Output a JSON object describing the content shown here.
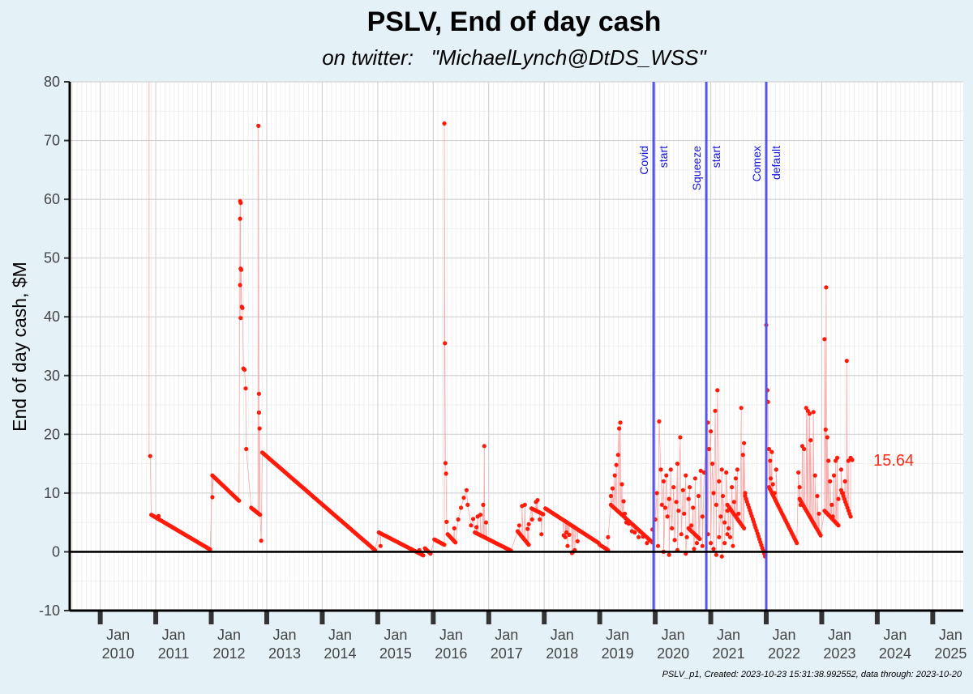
{
  "chart_data": {
    "type": "scatter",
    "title": "PSLV, End of day cash",
    "subtitle": "on twitter:   \"MichaelLynch@DtDS_WSS\"",
    "ylabel": "End of day cash, $M",
    "xlabel": "",
    "caption": "PSLV_p1, Created: 2023-10-23 15:31:38.992552, data through: 2023-10-20",
    "ylim": [
      -10,
      80
    ],
    "yticks": [
      -10,
      0,
      10,
      20,
      30,
      40,
      50,
      60,
      70,
      80
    ],
    "xlim": [
      2009.45,
      2025.55
    ],
    "xticks": [
      {
        "x": 2010.0,
        "line1": "Jan",
        "line2": "2010"
      },
      {
        "x": 2011.0,
        "line1": "Jan",
        "line2": "2011"
      },
      {
        "x": 2012.0,
        "line1": "Jan",
        "line2": "2012"
      },
      {
        "x": 2013.0,
        "line1": "Jan",
        "line2": "2013"
      },
      {
        "x": 2014.0,
        "line1": "Jan",
        "line2": "2014"
      },
      {
        "x": 2015.0,
        "line1": "Jan",
        "line2": "2015"
      },
      {
        "x": 2016.0,
        "line1": "Jan",
        "line2": "2016"
      },
      {
        "x": 2017.0,
        "line1": "Jan",
        "line2": "2017"
      },
      {
        "x": 2018.0,
        "line1": "Jan",
        "line2": "2018"
      },
      {
        "x": 2019.0,
        "line1": "Jan",
        "line2": "2019"
      },
      {
        "x": 2020.0,
        "line1": "Jan",
        "line2": "2020"
      },
      {
        "x": 2021.0,
        "line1": "Jan",
        "line2": "2021"
      },
      {
        "x": 2022.0,
        "line1": "Jan",
        "line2": "2022"
      },
      {
        "x": 2023.0,
        "line1": "Jan",
        "line2": "2023"
      },
      {
        "x": 2024.0,
        "line1": "Jan",
        "line2": "2024"
      },
      {
        "x": 2025.0,
        "line1": "Jan",
        "line2": "2025"
      }
    ],
    "hline": 0,
    "vlines": [
      {
        "x": 2019.97,
        "line1": "Covid",
        "line2": "start"
      },
      {
        "x": 2020.92,
        "line1": "Squeeze",
        "line2": "start"
      },
      {
        "x": 2022.0,
        "line1": "Comex",
        "line2": "default"
      }
    ],
    "end_label": {
      "x": 2023.55,
      "y": 15.64,
      "text": "15.64"
    },
    "grid": true,
    "colors": {
      "points": "#ff1a0a",
      "connector": "#f5a3a3",
      "vlines": "#5555ee",
      "background": "#e4f2f8",
      "panel": "#ffffff"
    },
    "segments": [
      {
        "x0": 2010.92,
        "x1": 2011.98,
        "y0": 6.3,
        "y1": 0.4,
        "n": 60
      },
      {
        "x0": 2012.02,
        "x1": 2012.5,
        "y0": 13.0,
        "y1": 8.7,
        "n": 26
      },
      {
        "x0": 2012.72,
        "x1": 2012.88,
        "y0": 7.5,
        "y1": 6.3,
        "n": 10
      },
      {
        "x0": 2012.92,
        "x1": 2014.95,
        "y0": 16.9,
        "y1": 0.3,
        "n": 110
      },
      {
        "x0": 2015.02,
        "x1": 2015.82,
        "y0": 3.3,
        "y1": -0.6,
        "n": 42
      },
      {
        "x0": 2015.85,
        "x1": 2015.95,
        "y0": 0.6,
        "y1": -0.3,
        "n": 6
      },
      {
        "x0": 2016.02,
        "x1": 2016.2,
        "y0": 2.1,
        "y1": 1.2,
        "n": 10
      },
      {
        "x0": 2016.26,
        "x1": 2016.4,
        "y0": 3.0,
        "y1": 1.6,
        "n": 9
      },
      {
        "x0": 2016.75,
        "x1": 2017.4,
        "y0": 3.3,
        "y1": 0.2,
        "n": 34
      },
      {
        "x0": 2017.52,
        "x1": 2017.72,
        "y0": 3.5,
        "y1": 1.2,
        "n": 11
      },
      {
        "x0": 2017.77,
        "x1": 2017.98,
        "y0": 7.4,
        "y1": 6.4,
        "n": 12
      },
      {
        "x0": 2018.02,
        "x1": 2018.98,
        "y0": 7.4,
        "y1": 1.5,
        "n": 52
      },
      {
        "x0": 2019.0,
        "x1": 2019.15,
        "y0": 1.2,
        "y1": 0.3,
        "n": 8
      },
      {
        "x0": 2019.2,
        "x1": 2019.95,
        "y0": 8.0,
        "y1": 1.6,
        "n": 30
      },
      {
        "x0": 2020.6,
        "x1": 2020.8,
        "y0": 4.0,
        "y1": 2.2,
        "n": 10
      },
      {
        "x0": 2021.3,
        "x1": 2021.6,
        "y0": 8.0,
        "y1": 4.0,
        "n": 14
      },
      {
        "x0": 2021.62,
        "x1": 2021.98,
        "y0": 9.5,
        "y1": -0.8,
        "n": 22
      },
      {
        "x0": 2022.05,
        "x1": 2022.55,
        "y0": 11.0,
        "y1": 1.5,
        "n": 28
      },
      {
        "x0": 2022.6,
        "x1": 2022.98,
        "y0": 9.0,
        "y1": 2.8,
        "n": 20
      },
      {
        "x0": 2023.05,
        "x1": 2023.3,
        "y0": 7.0,
        "y1": 4.5,
        "n": 14
      },
      {
        "x0": 2023.35,
        "x1": 2023.52,
        "y0": 10.5,
        "y1": 6.0,
        "n": 10
      }
    ],
    "points": [
      [
        2010.9,
        16.3
      ],
      [
        2011.05,
        6.1
      ],
      [
        2012.02,
        9.3
      ],
      [
        2012.52,
        59.7
      ],
      [
        2012.53,
        59.4
      ],
      [
        2012.52,
        56.7
      ],
      [
        2012.53,
        48.2
      ],
      [
        2012.54,
        48.0
      ],
      [
        2012.52,
        45.4
      ],
      [
        2012.53,
        39.8
      ],
      [
        2012.55,
        41.7
      ],
      [
        2012.56,
        41.5
      ],
      [
        2012.58,
        31.2
      ],
      [
        2012.6,
        31.0
      ],
      [
        2012.62,
        27.8
      ],
      [
        2012.63,
        17.5
      ],
      [
        2012.85,
        72.5
      ],
      [
        2012.86,
        26.9
      ],
      [
        2012.86,
        23.7
      ],
      [
        2012.87,
        21.0
      ],
      [
        2012.9,
        1.9
      ],
      [
        2015.05,
        1.0
      ],
      [
        2015.75,
        0.3
      ],
      [
        2016.2,
        72.9
      ],
      [
        2016.21,
        35.5
      ],
      [
        2016.22,
        15.1
      ],
      [
        2016.23,
        13.3
      ],
      [
        2016.24,
        5.1
      ],
      [
        2016.38,
        4.0
      ],
      [
        2016.45,
        5.5
      ],
      [
        2016.5,
        7.5
      ],
      [
        2016.55,
        9.2
      ],
      [
        2016.6,
        10.5
      ],
      [
        2016.62,
        8.0
      ],
      [
        2016.68,
        4.5
      ],
      [
        2016.72,
        5.6
      ],
      [
        2016.78,
        4.2
      ],
      [
        2016.8,
        6.0
      ],
      [
        2016.85,
        6.3
      ],
      [
        2016.9,
        8.0
      ],
      [
        2016.92,
        18.0
      ],
      [
        2016.95,
        5.0
      ],
      [
        2017.55,
        4.5
      ],
      [
        2017.6,
        7.8
      ],
      [
        2017.65,
        8.0
      ],
      [
        2017.7,
        3.9
      ],
      [
        2017.72,
        4.7
      ],
      [
        2017.78,
        5.5
      ],
      [
        2017.85,
        8.5
      ],
      [
        2017.88,
        8.8
      ],
      [
        2017.92,
        5.5
      ],
      [
        2017.95,
        3.0
      ],
      [
        2018.35,
        2.8
      ],
      [
        2018.38,
        2.5
      ],
      [
        2018.4,
        3.3
      ],
      [
        2018.42,
        1.0
      ],
      [
        2018.45,
        2.9
      ],
      [
        2018.5,
        -0.2
      ],
      [
        2018.52,
        0.0
      ],
      [
        2018.55,
        0.3
      ],
      [
        2018.6,
        1.8
      ],
      [
        2019.15,
        2.5
      ],
      [
        2019.2,
        9.5
      ],
      [
        2019.23,
        10.8
      ],
      [
        2019.27,
        13.0
      ],
      [
        2019.3,
        14.8
      ],
      [
        2019.33,
        16.5
      ],
      [
        2019.35,
        21.0
      ],
      [
        2019.37,
        22.0
      ],
      [
        2019.4,
        11.5
      ],
      [
        2019.43,
        8.6
      ],
      [
        2019.45,
        6.5
      ],
      [
        2019.48,
        5.0
      ],
      [
        2019.52,
        4.8
      ],
      [
        2019.58,
        3.5
      ],
      [
        2019.63,
        3.3
      ],
      [
        2019.7,
        2.5
      ],
      [
        2019.78,
        2.6
      ],
      [
        2019.85,
        1.5
      ],
      [
        2019.9,
        2.0
      ],
      [
        2019.95,
        3.8
      ],
      [
        2020.0,
        5.5
      ],
      [
        2020.03,
        10.0
      ],
      [
        2020.07,
        22.2
      ],
      [
        2020.1,
        14.0
      ],
      [
        2020.12,
        8.0
      ],
      [
        2020.15,
        12.0
      ],
      [
        2020.18,
        7.5
      ],
      [
        2020.2,
        13.0
      ],
      [
        2020.22,
        6.0
      ],
      [
        2020.25,
        9.0
      ],
      [
        2020.28,
        14.0
      ],
      [
        2020.3,
        4.0
      ],
      [
        2020.33,
        11.0
      ],
      [
        2020.35,
        2.0
      ],
      [
        2020.38,
        8.5
      ],
      [
        2020.4,
        15.0
      ],
      [
        2020.42,
        7.0
      ],
      [
        2020.45,
        19.5
      ],
      [
        2020.47,
        3.0
      ],
      [
        2020.5,
        10.5
      ],
      [
        2020.52,
        6.5
      ],
      [
        2020.55,
        13.0
      ],
      [
        2020.57,
        2.5
      ],
      [
        2020.6,
        9.0
      ],
      [
        2020.62,
        11.0
      ],
      [
        2020.65,
        4.5
      ],
      [
        2020.68,
        7.5
      ],
      [
        2020.72,
        12.5
      ],
      [
        2020.75,
        1.5
      ],
      [
        2020.78,
        9.5
      ],
      [
        2020.82,
        13.8
      ],
      [
        2020.85,
        6.0
      ],
      [
        2020.88,
        13.5
      ],
      [
        2020.05,
        1.0
      ],
      [
        2020.15,
        0.0
      ],
      [
        2020.25,
        -0.5
      ],
      [
        2020.4,
        0.3
      ],
      [
        2020.55,
        -0.3
      ],
      [
        2020.7,
        0.5
      ],
      [
        2020.85,
        1.0
      ],
      [
        2020.95,
        22.0
      ],
      [
        2020.97,
        17.5
      ],
      [
        2021.0,
        20.5
      ],
      [
        2021.03,
        15.0
      ],
      [
        2021.05,
        10.0
      ],
      [
        2021.08,
        24.0
      ],
      [
        2021.1,
        8.0
      ],
      [
        2021.12,
        27.5
      ],
      [
        2021.15,
        12.0
      ],
      [
        2021.18,
        6.0
      ],
      [
        2021.2,
        14.0
      ],
      [
        2021.22,
        9.5
      ],
      [
        2021.25,
        5.0
      ],
      [
        2021.28,
        13.5
      ],
      [
        2021.3,
        7.0
      ],
      [
        2021.32,
        4.0
      ],
      [
        2021.35,
        2.5
      ],
      [
        2021.38,
        11.0
      ],
      [
        2021.4,
        1.0
      ],
      [
        2021.42,
        8.5
      ],
      [
        2021.45,
        12.5
      ],
      [
        2021.48,
        14.0
      ],
      [
        2021.5,
        6.5
      ],
      [
        2021.55,
        24.5
      ],
      [
        2021.58,
        16.5
      ],
      [
        2021.6,
        18.5
      ],
      [
        2021.62,
        10.0
      ],
      [
        2020.95,
        3.0
      ],
      [
        2021.0,
        1.5
      ],
      [
        2021.05,
        0.5
      ],
      [
        2021.1,
        -0.5
      ],
      [
        2021.15,
        2.5
      ],
      [
        2021.2,
        -0.8
      ],
      [
        2021.25,
        1.5
      ],
      [
        2021.3,
        3.0
      ],
      [
        2022.0,
        38.6
      ],
      [
        2022.02,
        27.5
      ],
      [
        2022.03,
        25.5
      ],
      [
        2022.05,
        17.5
      ],
      [
        2022.07,
        15.5
      ],
      [
        2022.08,
        12.5
      ],
      [
        2022.1,
        17.0
      ],
      [
        2022.12,
        11.5
      ],
      [
        2022.15,
        10.0
      ],
      [
        2022.18,
        14.0
      ],
      [
        2022.58,
        13.5
      ],
      [
        2022.6,
        11.0
      ],
      [
        2022.62,
        8.0
      ],
      [
        2022.65,
        18.0
      ],
      [
        2022.68,
        17.5
      ],
      [
        2022.72,
        24.5
      ],
      [
        2022.75,
        24.0
      ],
      [
        2022.78,
        23.5
      ],
      [
        2022.8,
        19.0
      ],
      [
        2022.85,
        23.8
      ],
      [
        2022.88,
        13.0
      ],
      [
        2022.92,
        9.5
      ],
      [
        2022.95,
        6.5
      ],
      [
        2023.05,
        36.2
      ],
      [
        2023.08,
        45.0
      ],
      [
        2023.07,
        20.8
      ],
      [
        2023.1,
        19.5
      ],
      [
        2023.12,
        15.5
      ],
      [
        2023.15,
        12.0
      ],
      [
        2023.18,
        8.0
      ],
      [
        2023.2,
        6.0
      ],
      [
        2023.22,
        13.0
      ],
      [
        2023.25,
        15.5
      ],
      [
        2023.28,
        16.0
      ],
      [
        2023.3,
        9.0
      ],
      [
        2023.35,
        14.0
      ],
      [
        2023.38,
        10.0
      ],
      [
        2023.42,
        12.0
      ],
      [
        2023.45,
        32.5
      ],
      [
        2023.48,
        15.5
      ],
      [
        2023.52,
        16.0
      ],
      [
        2023.55,
        15.64
      ]
    ]
  }
}
